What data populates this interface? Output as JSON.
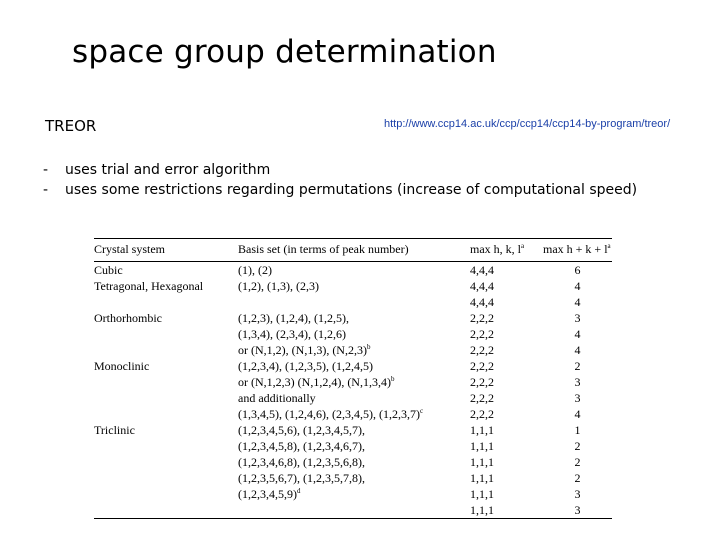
{
  "title": "space group determination",
  "subtitle": "TREOR",
  "url": "http://www.ccp14.ac.uk/ccp/ccp14/ccp14-by-program/treor/",
  "bullets": [
    "uses trial and error algorithm",
    "uses some restrictions regarding permutations (increase of computational speed)"
  ],
  "bullet_marker": "-",
  "table": {
    "headers": {
      "crystal_system": "Crystal system",
      "basis_set": "Basis set (in terms of peak number)",
      "max_hkl": "max h, k, l",
      "max_hkl_sup": "a",
      "max_sum": "max h + k + l",
      "max_sum_sup": "a"
    },
    "rows": [
      {
        "system": "Cubic",
        "basis": "(1), (2)",
        "sup": "",
        "max_hkl": "4,4,4",
        "max_sum": "6"
      },
      {
        "system": "Tetragonal, Hexagonal",
        "basis": "(1,2), (1,3), (2,3)",
        "sup": "",
        "max_hkl": "4,4,4",
        "max_sum": "4"
      },
      {
        "system": "",
        "basis": "",
        "sup": "",
        "max_hkl": "4,4,4",
        "max_sum": "4"
      },
      {
        "system": "Orthorhombic",
        "basis": "(1,2,3), (1,2,4), (1,2,5),",
        "sup": "",
        "max_hkl": "2,2,2",
        "max_sum": "3"
      },
      {
        "system": "",
        "basis": "(1,3,4), (2,3,4), (1,2,6)",
        "sup": "",
        "max_hkl": "2,2,2",
        "max_sum": "4"
      },
      {
        "system": "",
        "basis": "or (N,1,2), (N,1,3), (N,2,3)",
        "sup": "b",
        "max_hkl": "2,2,2",
        "max_sum": "4"
      },
      {
        "system": "Monoclinic",
        "basis": "(1,2,3,4), (1,2,3,5), (1,2,4,5)",
        "sup": "",
        "max_hkl": "2,2,2",
        "max_sum": "2"
      },
      {
        "system": "",
        "basis": "or (N,1,2,3) (N,1,2,4), (N,1,3,4)",
        "sup": "b",
        "max_hkl": "2,2,2",
        "max_sum": "3"
      },
      {
        "system": "",
        "basis": "and additionally",
        "sup": "",
        "max_hkl": "2,2,2",
        "max_sum": "3"
      },
      {
        "system": "",
        "basis": "(1,3,4,5), (1,2,4,6), (2,3,4,5), (1,2,3,7)",
        "sup": "c",
        "max_hkl": "2,2,2",
        "max_sum": "4"
      },
      {
        "system": "Triclinic",
        "basis": "(1,2,3,4,5,6), (1,2,3,4,5,7),",
        "sup": "",
        "max_hkl": "1,1,1",
        "max_sum": "1"
      },
      {
        "system": "",
        "basis": "(1,2,3,4,5,8), (1,2,3,4,6,7),",
        "sup": "",
        "max_hkl": "1,1,1",
        "max_sum": "2"
      },
      {
        "system": "",
        "basis": "(1,2,3,4,6,8), (1,2,3,5,6,8),",
        "sup": "",
        "max_hkl": "1,1,1",
        "max_sum": "2"
      },
      {
        "system": "",
        "basis": "(1,2,3,5,6,7), (1,2,3,5,7,8),",
        "sup": "",
        "max_hkl": "1,1,1",
        "max_sum": "2"
      },
      {
        "system": "",
        "basis": "(1,2,3,4,5,9)",
        "sup": "d",
        "max_hkl": "1,1,1",
        "max_sum": "3"
      },
      {
        "system": "",
        "basis": "",
        "sup": "",
        "max_hkl": "1,1,1",
        "max_sum": "3"
      }
    ]
  }
}
